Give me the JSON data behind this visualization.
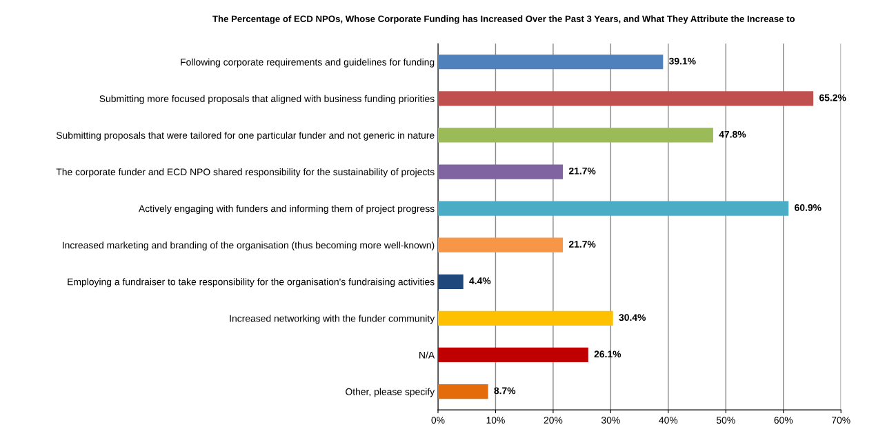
{
  "chart_data": {
    "type": "bar",
    "orientation": "horizontal",
    "title": "The Percentage of ECD NPOs, Whose Corporate Funding has Increased Over the Past 3 Years, and What They Attribute the Increase to",
    "categories": [
      "Following corporate requirements and guidelines for funding",
      "Submitting more focused proposals that aligned with business funding priorities",
      "Submitting proposals that were tailored for one particular funder and not generic in nature",
      "The corporate funder and ECD NPO shared responsibility for the sustainability of projects",
      "Actively engaging with funders and informing them of project progress",
      "Increased marketing and branding of the organisation (thus becoming more well-known)",
      "Employing a fundraiser to take responsibility for the organisation's fundraising activities",
      "Increased networking with the funder community",
      "N/A",
      "Other, please specify"
    ],
    "values": [
      39.1,
      65.2,
      47.8,
      21.7,
      60.9,
      21.7,
      4.4,
      30.4,
      26.1,
      8.7
    ],
    "value_labels": [
      "39.1%",
      "65.2%",
      "47.8%",
      "21.7%",
      "60.9%",
      "21.7%",
      "4.4%",
      "30.4%",
      "26.1%",
      "8.7%"
    ],
    "colors": [
      "#4f81bd",
      "#c0504d",
      "#9bbb59",
      "#8064a2",
      "#4bacc6",
      "#f79646",
      "#1f497d",
      "#ffc000",
      "#c00000",
      "#e46c0a"
    ],
    "xlim": [
      0,
      70
    ],
    "xticks": [
      {
        "value": 0,
        "label": "0%"
      },
      {
        "value": 10,
        "label": "10%"
      },
      {
        "value": 20,
        "label": "20%"
      },
      {
        "value": 30,
        "label": "30%"
      },
      {
        "value": 40,
        "label": "40%"
      },
      {
        "value": 50,
        "label": "50%"
      },
      {
        "value": 60,
        "label": "60%"
      },
      {
        "value": 70,
        "label": "70%"
      }
    ],
    "grid": "x",
    "legend": false
  }
}
